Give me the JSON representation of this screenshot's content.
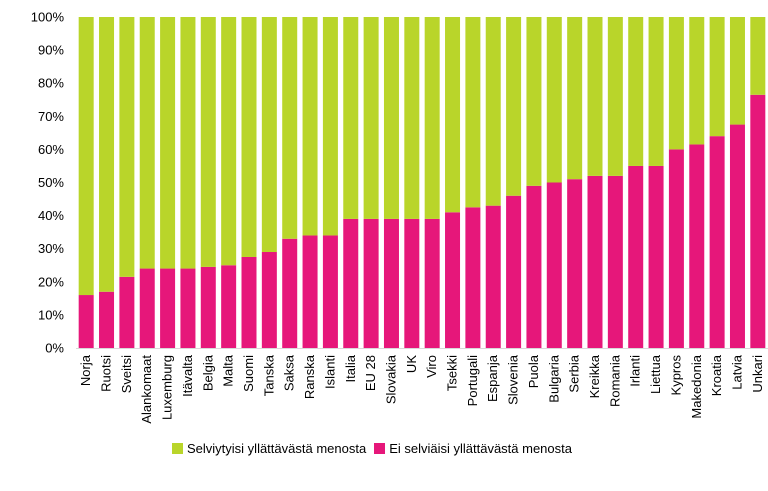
{
  "chart_data": {
    "type": "bar",
    "stacked": true,
    "categories": [
      "Norja",
      "Ruotsi",
      "Sveitsi",
      "Alankomaat",
      "Luxemburg",
      "Itävalta",
      "Belgia",
      "Malta",
      "Suomi",
      "Tanska",
      "Saksa",
      "Ranska",
      "Islanti",
      "Italia",
      "EU 28",
      "Slovakia",
      "UK",
      "Viro",
      "Tsekki",
      "Portugali",
      "Espanja",
      "Slovenia",
      "Puola",
      "Bulgaria",
      "Serbia",
      "Kreikka",
      "Romania",
      "Irlanti",
      "Liettua",
      "Kypros",
      "Makedonia",
      "Kroatia",
      "Latvia",
      "Unkari"
    ],
    "series": [
      {
        "name": "Ei selviäisi yllättävästä menosta",
        "color": "#e6177a",
        "values": [
          16,
          17,
          21.5,
          24,
          24,
          24,
          24.5,
          25,
          27.5,
          29,
          33,
          34,
          34,
          39,
          39,
          39,
          39,
          39,
          41,
          42.5,
          43,
          46,
          49,
          50,
          51,
          52,
          52,
          55,
          55,
          60,
          61.5,
          64,
          67.5,
          76.5
        ]
      },
      {
        "name": "Selviytyisi yllättävästä menosta",
        "color": "#b9d52a",
        "values": [
          84,
          83,
          78.5,
          76,
          76,
          76,
          75.5,
          75,
          72.5,
          71,
          67,
          66,
          66,
          61,
          61,
          61,
          61,
          61,
          59,
          57.5,
          57,
          54,
          51,
          50,
          49,
          48,
          48,
          45,
          45,
          40,
          38.5,
          36,
          32.5,
          23.5
        ]
      }
    ],
    "y_ticks": [
      "0%",
      "10%",
      "20%",
      "30%",
      "40%",
      "50%",
      "60%",
      "70%",
      "80%",
      "90%",
      "100%"
    ],
    "ylim": [
      0,
      100
    ],
    "legend_position": "bottom",
    "grid": false
  },
  "legend": [
    {
      "label": "Selviytyisi yllättävästä menosta",
      "color": "#b9d52a"
    },
    {
      "label": "Ei selviäisi yllättävästä menosta",
      "color": "#e6177a"
    }
  ]
}
